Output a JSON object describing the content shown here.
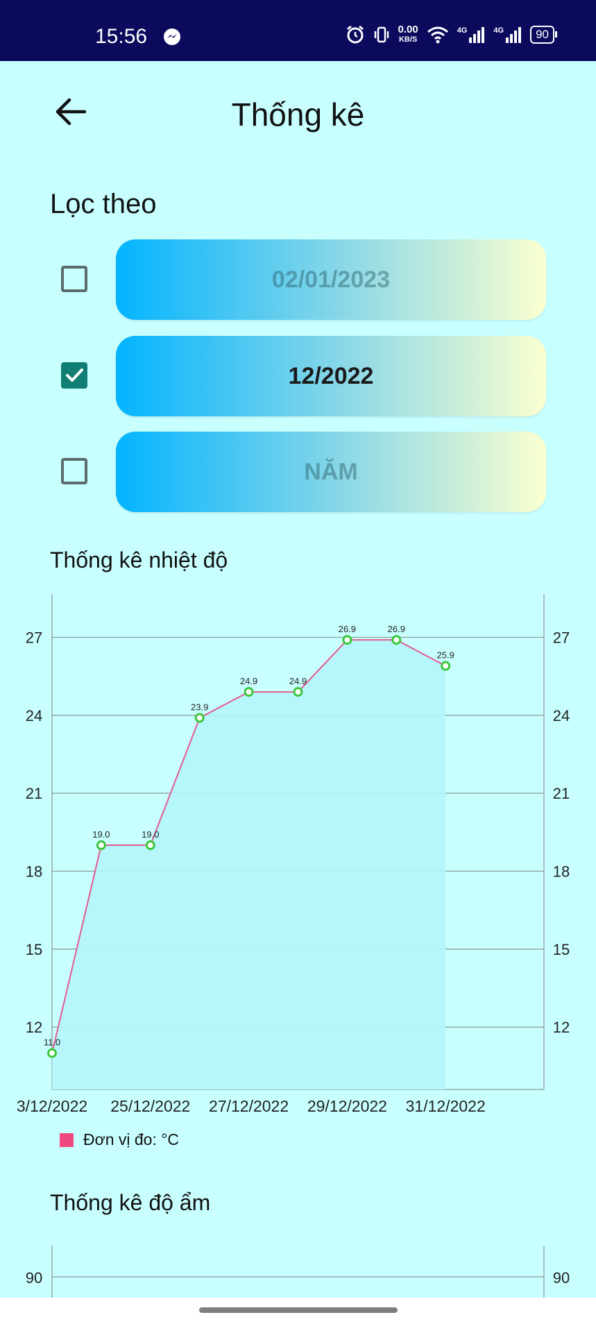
{
  "status_bar": {
    "time": "15:56",
    "net_speed_value": "0.00",
    "net_speed_unit": "KB/S",
    "signal1_label": "4G",
    "signal2_label": "4G",
    "battery": "90",
    "icons": [
      "messenger-icon",
      "alarm-icon",
      "vibrate-icon",
      "wifi-icon",
      "signal-icon",
      "battery-icon"
    ]
  },
  "header": {
    "title": "Thống kê"
  },
  "filter": {
    "label": "Lọc theo",
    "rows": [
      {
        "checked": false,
        "value": "02/01/2023"
      },
      {
        "checked": true,
        "value": "12/2022"
      },
      {
        "checked": false,
        "value": "NĂM"
      }
    ]
  },
  "temperature": {
    "title": "Thống kê nhiệt độ",
    "legend": "Đơn vị đo: °C"
  },
  "humidity": {
    "title": "Thống kê độ ẩm",
    "y_top_label": "90"
  },
  "colors": {
    "background": "#c8ffff",
    "status_bar": "#0b0a5c",
    "line": "#e55a8f",
    "marker": "#3cc63c",
    "fill": "#b4f6fc",
    "checkbox_checked": "#107e74"
  },
  "chart_data": {
    "type": "line",
    "title": "Thống kê nhiệt độ",
    "x_tick_labels": [
      "3/12/2022",
      "25/12/2022",
      "27/12/2022",
      "29/12/2022",
      "31/12/2022"
    ],
    "values": [
      11.0,
      19.0,
      19.0,
      23.9,
      24.9,
      24.9,
      26.9,
      26.9,
      25.9
    ],
    "data_labels": [
      "11.0",
      "19.0",
      "19.0",
      "23.9",
      "24.9",
      "24.9",
      "26.9",
      "26.9",
      "25.9"
    ],
    "y_ticks": [
      "12",
      "15",
      "18",
      "21",
      "24",
      "27"
    ],
    "ylim": [
      9.6,
      28.4
    ],
    "grid": true,
    "legend": "Đơn vị đo: °C",
    "legend_position": "bottom-left"
  }
}
